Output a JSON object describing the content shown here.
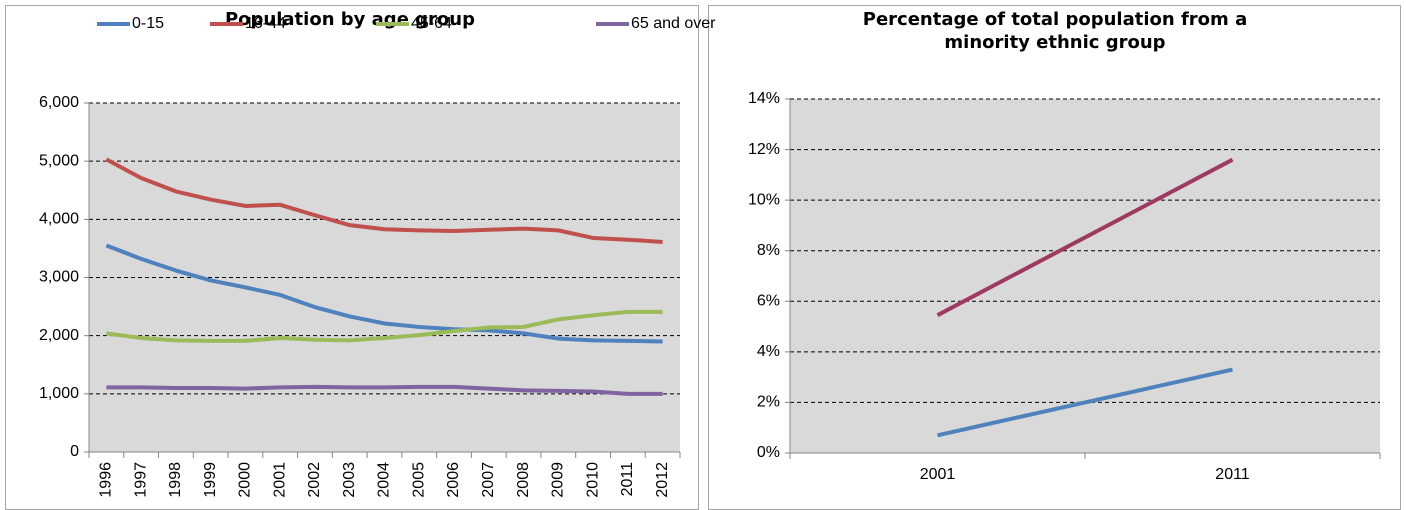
{
  "chart_data": [
    {
      "type": "line",
      "title": "Population by age group",
      "categories": [
        "1996",
        "1997",
        "1998",
        "1999",
        "2000",
        "2001",
        "2002",
        "2003",
        "2004",
        "2005",
        "2006",
        "2007",
        "2008",
        "2009",
        "2010",
        "2011",
        "2012"
      ],
      "series": [
        {
          "name": "0-15",
          "color": "#4f81bd",
          "values": [
            3550,
            3320,
            3120,
            2950,
            2830,
            2700,
            2490,
            2330,
            2210,
            2150,
            2110,
            2090,
            2040,
            1950,
            1920,
            1910,
            1900
          ]
        },
        {
          "name": "16-44",
          "color": "#c0504d",
          "values": [
            5030,
            4710,
            4480,
            4340,
            4230,
            4250,
            4070,
            3900,
            3830,
            3810,
            3800,
            3820,
            3840,
            3810,
            3680,
            3650,
            3610
          ]
        },
        {
          "name": "45-64",
          "color": "#9bbb59",
          "values": [
            2040,
            1960,
            1920,
            1910,
            1910,
            1960,
            1930,
            1920,
            1960,
            2010,
            2080,
            2140,
            2150,
            2280,
            2350,
            2410,
            2410
          ]
        },
        {
          "name": "65 and over",
          "color": "#8064a2",
          "values": [
            1110,
            1110,
            1100,
            1100,
            1090,
            1110,
            1120,
            1110,
            1110,
            1120,
            1120,
            1090,
            1060,
            1050,
            1040,
            1000,
            1000
          ]
        }
      ],
      "ylim": [
        0,
        6000
      ],
      "yticks": [
        0,
        {
          "value": 1000,
          "label": "1,000"
        },
        {
          "value": 2000,
          "label": "2,000"
        },
        {
          "value": 3000,
          "label": "3,000"
        },
        {
          "value": 4000,
          "label": "4,000"
        },
        {
          "value": 5000,
          "label": "5,000"
        },
        {
          "value": 6000,
          "label": "6,000"
        }
      ],
      "grid": true,
      "legend": "top"
    },
    {
      "type": "line",
      "title": "Percentage of total population from a minority ethnic group",
      "categories": [
        "2001",
        "2011"
      ],
      "series": [
        {
          "color": "#4f81bd",
          "values": [
            0.7,
            3.3
          ]
        },
        {
          "color": "#9e3a62",
          "values": [
            5.45,
            11.6
          ]
        }
      ],
      "ylim": [
        0,
        14
      ],
      "yticks": [
        {
          "value": 0,
          "label": "0%"
        },
        {
          "value": 2,
          "label": "2%"
        },
        {
          "value": 4,
          "label": "4%"
        },
        {
          "value": 6,
          "label": "6%"
        },
        {
          "value": 8,
          "label": "8%"
        },
        {
          "value": 10,
          "label": "10%"
        },
        {
          "value": 12,
          "label": "12%"
        },
        {
          "value": 14,
          "label": "14%"
        }
      ],
      "grid": true
    }
  ]
}
